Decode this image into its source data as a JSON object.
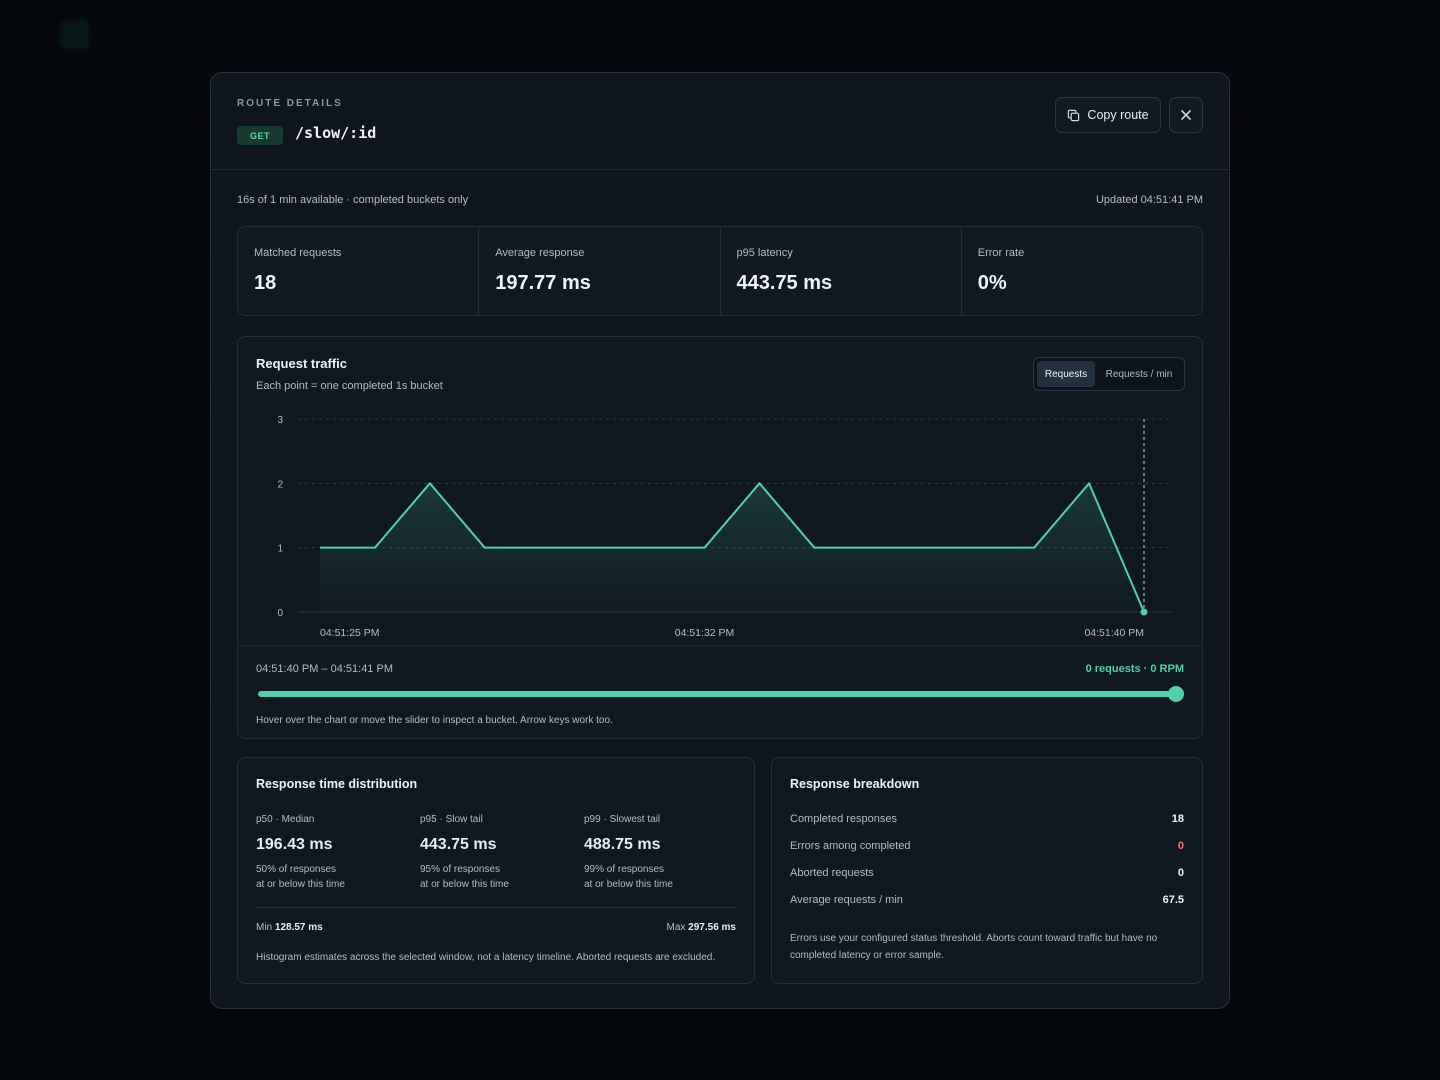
{
  "modal": {
    "eyebrow": "ROUTE DETAILS",
    "method": "GET",
    "route": "/slow/:id",
    "copy_label": "Copy route",
    "meta_left": "16s of 1 min available · completed buckets only",
    "meta_right": "Updated 04:51:41 PM"
  },
  "stats": [
    {
      "label": "Matched requests",
      "value": "18"
    },
    {
      "label": "Average response",
      "value": "197.77 ms"
    },
    {
      "label": "p95 latency",
      "value": "443.75 ms"
    },
    {
      "label": "Error rate",
      "value": "0%"
    }
  ],
  "traffic": {
    "title": "Request traffic",
    "subtitle": "Each point = one completed 1s bucket",
    "toggle": {
      "active": "Requests",
      "inactive": "Requests / min"
    },
    "inspector": {
      "range": "04:51:40 PM – 04:51:41 PM",
      "value": "0 requests · 0 RPM",
      "hint": "Hover over the chart or move the slider to inspect a bucket. Arrow keys work too."
    }
  },
  "chart_data": {
    "type": "area",
    "x": [
      "04:51:25 PM",
      "04:51:26 PM",
      "04:51:27 PM",
      "04:51:28 PM",
      "04:51:29 PM",
      "04:51:30 PM",
      "04:51:31 PM",
      "04:51:32 PM",
      "04:51:33 PM",
      "04:51:34 PM",
      "04:51:35 PM",
      "04:51:36 PM",
      "04:51:37 PM",
      "04:51:38 PM",
      "04:51:39 PM",
      "04:51:40 PM"
    ],
    "values": [
      1,
      1,
      2,
      1,
      1,
      1,
      1,
      1,
      2,
      1,
      1,
      1,
      1,
      1,
      2,
      0
    ],
    "x_ticks": [
      "04:51:25 PM",
      "04:51:32 PM",
      "04:51:40 PM"
    ],
    "y_ticks": [
      "0",
      "1",
      "2",
      "3"
    ],
    "ylim": [
      0,
      3
    ],
    "grid": true,
    "color": "#4fd1a9"
  },
  "distribution": {
    "title": "Response time distribution",
    "percentiles": [
      {
        "label": "p50 · Median",
        "value": "196.43 ms",
        "desc1": "50% of responses",
        "desc2": "at or below this time"
      },
      {
        "label": "p95 · Slow tail",
        "value": "443.75 ms",
        "desc1": "95% of responses",
        "desc2": "at or below this time"
      },
      {
        "label": "p99 · Slowest tail",
        "value": "488.75 ms",
        "desc1": "99% of responses",
        "desc2": "at or below this time"
      }
    ],
    "min_label": "Min",
    "min_value": "128.57 ms",
    "max_label": "Max",
    "max_value": "297.56 ms",
    "note": "Histogram estimates across the selected window, not a latency timeline. Aborted requests are excluded."
  },
  "breakdown": {
    "title": "Response breakdown",
    "rows": [
      {
        "label": "Completed responses",
        "value": "18"
      },
      {
        "label": "Errors among completed",
        "value": "0"
      },
      {
        "label": "Aborted requests",
        "value": "0"
      },
      {
        "label": "Average requests / min",
        "value": "67.5"
      }
    ],
    "note": "Errors use your configured status threshold. Aborts count toward traffic but have no completed latency or error sample."
  }
}
